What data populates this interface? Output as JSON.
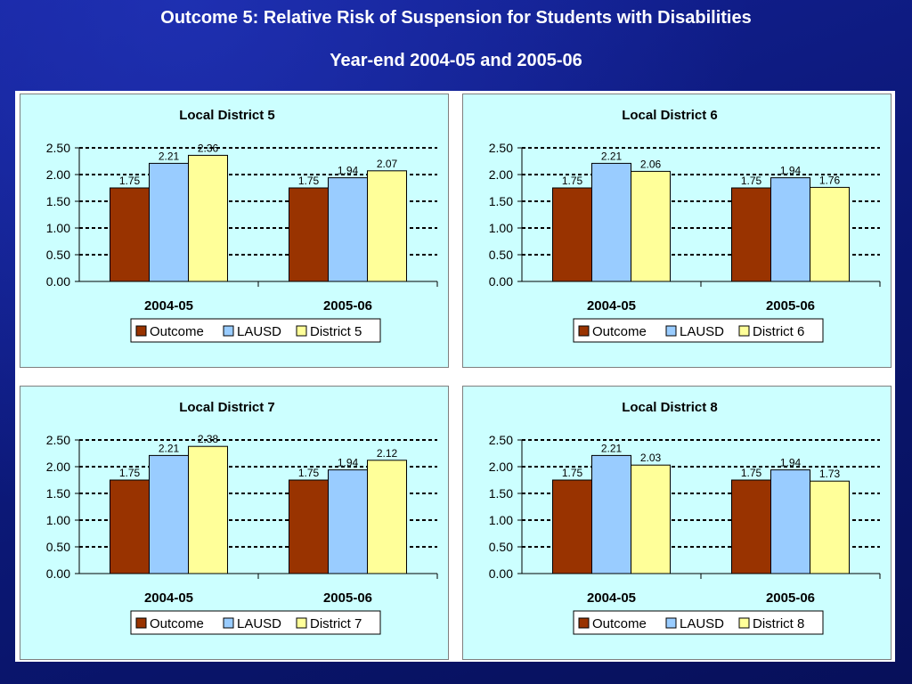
{
  "slide": {
    "title_line1": "Outcome 5: Relative Risk of Suspension for Students with Disabilities",
    "title_line2": "Year-end 2004-05 and 2005-06"
  },
  "colors": {
    "Outcome": "#993300",
    "LAUSD": "#99ccff",
    "District": "#ffff99",
    "panel_bg": "#ccffff",
    "slide_bg": "#0c1a8c"
  },
  "chart_data": [
    {
      "type": "bar",
      "title": "Local District 5",
      "categories": [
        "2004-05",
        "2005-06"
      ],
      "series": [
        {
          "name": "Outcome",
          "values": [
            1.75,
            1.75
          ]
        },
        {
          "name": "LAUSD",
          "values": [
            2.21,
            1.94
          ]
        },
        {
          "name": "District 5",
          "values": [
            2.36,
            2.07
          ]
        }
      ],
      "ylim": [
        0,
        2.5
      ],
      "yticks": [
        "0.00",
        "0.50",
        "1.00",
        "1.50",
        "2.00",
        "2.50"
      ],
      "grid": "dashed horizontal",
      "legend": "bottom"
    },
    {
      "type": "bar",
      "title": "Local District 6",
      "categories": [
        "2004-05",
        "2005-06"
      ],
      "series": [
        {
          "name": "Outcome",
          "values": [
            1.75,
            1.75
          ]
        },
        {
          "name": "LAUSD",
          "values": [
            2.21,
            1.94
          ]
        },
        {
          "name": "District 6",
          "values": [
            2.06,
            1.76
          ]
        }
      ],
      "ylim": [
        0,
        2.5
      ],
      "yticks": [
        "0.00",
        "0.50",
        "1.00",
        "1.50",
        "2.00",
        "2.50"
      ],
      "grid": "dashed horizontal",
      "legend": "bottom"
    },
    {
      "type": "bar",
      "title": "Local District 7",
      "categories": [
        "2004-05",
        "2005-06"
      ],
      "series": [
        {
          "name": "Outcome",
          "values": [
            1.75,
            1.75
          ]
        },
        {
          "name": "LAUSD",
          "values": [
            2.21,
            1.94
          ]
        },
        {
          "name": "District 7",
          "values": [
            2.38,
            2.12
          ]
        }
      ],
      "ylim": [
        0,
        2.5
      ],
      "yticks": [
        "0.00",
        "0.50",
        "1.00",
        "1.50",
        "2.00",
        "2.50"
      ],
      "grid": "dashed horizontal",
      "legend": "bottom"
    },
    {
      "type": "bar",
      "title": "Local District 8",
      "categories": [
        "2004-05",
        "2005-06"
      ],
      "series": [
        {
          "name": "Outcome",
          "values": [
            1.75,
            1.75
          ]
        },
        {
          "name": "LAUSD",
          "values": [
            2.21,
            1.94
          ]
        },
        {
          "name": "District 8",
          "values": [
            2.03,
            1.73
          ]
        }
      ],
      "ylim": [
        0,
        2.5
      ],
      "yticks": [
        "0.00",
        "0.50",
        "1.00",
        "1.50",
        "2.00",
        "2.50"
      ],
      "grid": "dashed horizontal",
      "legend": "bottom"
    }
  ]
}
